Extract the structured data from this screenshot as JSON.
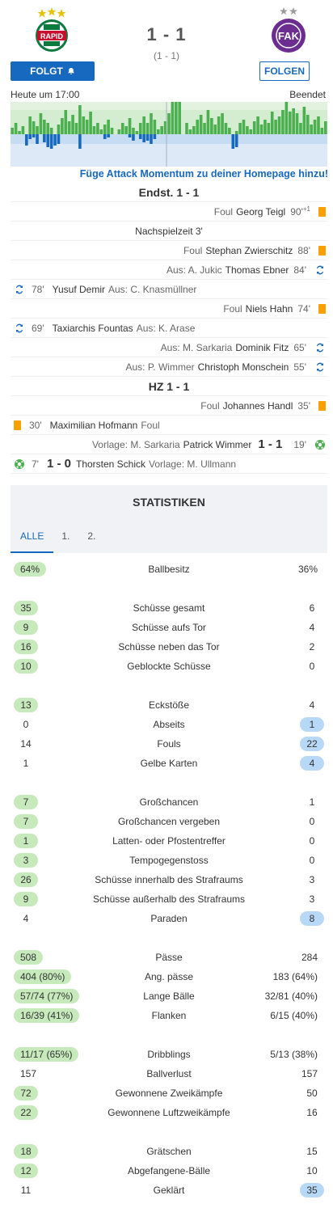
{
  "match": {
    "home_score": "1 - 1",
    "halftime": "(1 - 1)",
    "home_follow_label": "FOLGT",
    "away_follow_label": "FOLGEN",
    "kickoff": "Heute um 17:00",
    "status": "Beendet",
    "momentum_link": "Füge Attack Momentum zu deiner Homepage hinzu!"
  },
  "colors": {
    "accent": "#1769c0",
    "home": "#4caf50",
    "away": "#1769c0",
    "yellow": "#f8a000"
  },
  "events": [
    {
      "type": "section",
      "text": "Endst. 1 - 1"
    },
    {
      "type": "right",
      "kind": "Foul",
      "player": "Georg Teigl",
      "minute": "90'",
      "extra": "+1",
      "icon": "yellow-card"
    },
    {
      "type": "center",
      "text": "Nachspielzeit 3'"
    },
    {
      "type": "right",
      "kind": "Foul",
      "player": "Stephan Zwierschitz",
      "minute": "88'",
      "icon": "yellow-card"
    },
    {
      "type": "right",
      "kind": "Aus: A. Jukic",
      "player": "Thomas Ebner",
      "minute": "84'",
      "icon": "substitution"
    },
    {
      "type": "left",
      "minute": "78'",
      "player": "Yusuf Demir",
      "kind": "Aus: C. Knasmüllner",
      "icon": "substitution"
    },
    {
      "type": "right",
      "kind": "Foul",
      "player": "Niels Hahn",
      "minute": "74'",
      "icon": "yellow-card"
    },
    {
      "type": "left",
      "minute": "69'",
      "player": "Taxiarchis Fountas",
      "kind": "Aus: K. Arase",
      "icon": "substitution"
    },
    {
      "type": "right",
      "kind": "Aus: M. Sarkaria",
      "player": "Dominik Fitz",
      "minute": "65'",
      "icon": "substitution"
    },
    {
      "type": "right",
      "kind": "Aus: P. Wimmer",
      "player": "Christoph Monschein",
      "minute": "55'",
      "icon": "substitution"
    },
    {
      "type": "section",
      "text": "HZ 1 - 1"
    },
    {
      "type": "right",
      "kind": "Foul",
      "player": "Johannes Handl",
      "minute": "35'",
      "icon": "yellow-card"
    },
    {
      "type": "left",
      "minute": "30'",
      "player": "Maximilian Hofmann",
      "kind": "Foul",
      "icon": "yellow-card"
    },
    {
      "type": "right-goal",
      "kind": "Vorlage: M. Sarkaria",
      "player": "Patrick Wimmer",
      "score": "1 - 1",
      "minute": "19'",
      "icon": "goal"
    },
    {
      "type": "left-goal",
      "minute": "7'",
      "score": "1 - 0",
      "player": "Thorsten Schick",
      "kind": "Vorlage: M. Ullmann",
      "icon": "goal"
    }
  ],
  "stats": {
    "title": "STATISTIKEN",
    "tabs": [
      "ALLE",
      "1.",
      "2."
    ],
    "groups": [
      [
        {
          "label": "Ballbesitz",
          "home": "64%",
          "away": "36%",
          "winner": "home"
        }
      ],
      [
        {
          "label": "Schüsse gesamt",
          "home": "35",
          "away": "6",
          "winner": "home"
        },
        {
          "label": "Schüsse aufs Tor",
          "home": "9",
          "away": "4",
          "winner": "home"
        },
        {
          "label": "Schüsse neben das Tor",
          "home": "16",
          "away": "2",
          "winner": "home"
        },
        {
          "label": "Geblockte Schüsse",
          "home": "10",
          "away": "0",
          "winner": "home"
        }
      ],
      [
        {
          "label": "Eckstöße",
          "home": "13",
          "away": "4",
          "winner": "home"
        },
        {
          "label": "Abseits",
          "home": "0",
          "away": "1",
          "winner": "away"
        },
        {
          "label": "Fouls",
          "home": "14",
          "away": "22",
          "winner": "away"
        },
        {
          "label": "Gelbe Karten",
          "home": "1",
          "away": "4",
          "winner": "away"
        }
      ],
      [
        {
          "label": "Großchancen",
          "home": "7",
          "away": "1",
          "winner": "home"
        },
        {
          "label": "Großchancen vergeben",
          "home": "7",
          "away": "0",
          "winner": "home"
        },
        {
          "label": "Latten- oder Pfostentreffer",
          "home": "1",
          "away": "0",
          "winner": "home"
        },
        {
          "label": "Tempogegenstoss",
          "home": "3",
          "away": "0",
          "winner": "home"
        },
        {
          "label": "Schüsse innerhalb des Strafraums",
          "home": "26",
          "away": "3",
          "winner": "home"
        },
        {
          "label": "Schüsse außerhalb des Strafraums",
          "home": "9",
          "away": "3",
          "winner": "home"
        },
        {
          "label": "Paraden",
          "home": "4",
          "away": "8",
          "winner": "away"
        }
      ],
      [
        {
          "label": "Pässe",
          "home": "508",
          "away": "284",
          "winner": "home"
        },
        {
          "label": "Ang. pässe",
          "home": "404 (80%)",
          "away": "183 (64%)",
          "winner": "home"
        },
        {
          "label": "Lange Bälle",
          "home": "57/74 (77%)",
          "away": "32/81 (40%)",
          "winner": "home"
        },
        {
          "label": "Flanken",
          "home": "16/39 (41%)",
          "away": "6/15 (40%)",
          "winner": "home"
        }
      ],
      [
        {
          "label": "Dribblings",
          "home": "11/17 (65%)",
          "away": "5/13 (38%)",
          "winner": "home"
        },
        {
          "label": "Ballverlust",
          "home": "157",
          "away": "157",
          "winner": "none"
        },
        {
          "label": "Gewonnene Zweikämpfe",
          "home": "72",
          "away": "50",
          "winner": "home"
        },
        {
          "label": "Gewonnene Luftzweikämpfe",
          "home": "22",
          "away": "16",
          "winner": "home"
        }
      ],
      [
        {
          "label": "Grätschen",
          "home": "18",
          "away": "15",
          "winner": "home"
        },
        {
          "label": "Abgefangene-Bälle",
          "home": "12",
          "away": "10",
          "winner": "home"
        },
        {
          "label": "Geklärt",
          "home": "11",
          "away": "35",
          "winner": "away"
        }
      ]
    ]
  }
}
